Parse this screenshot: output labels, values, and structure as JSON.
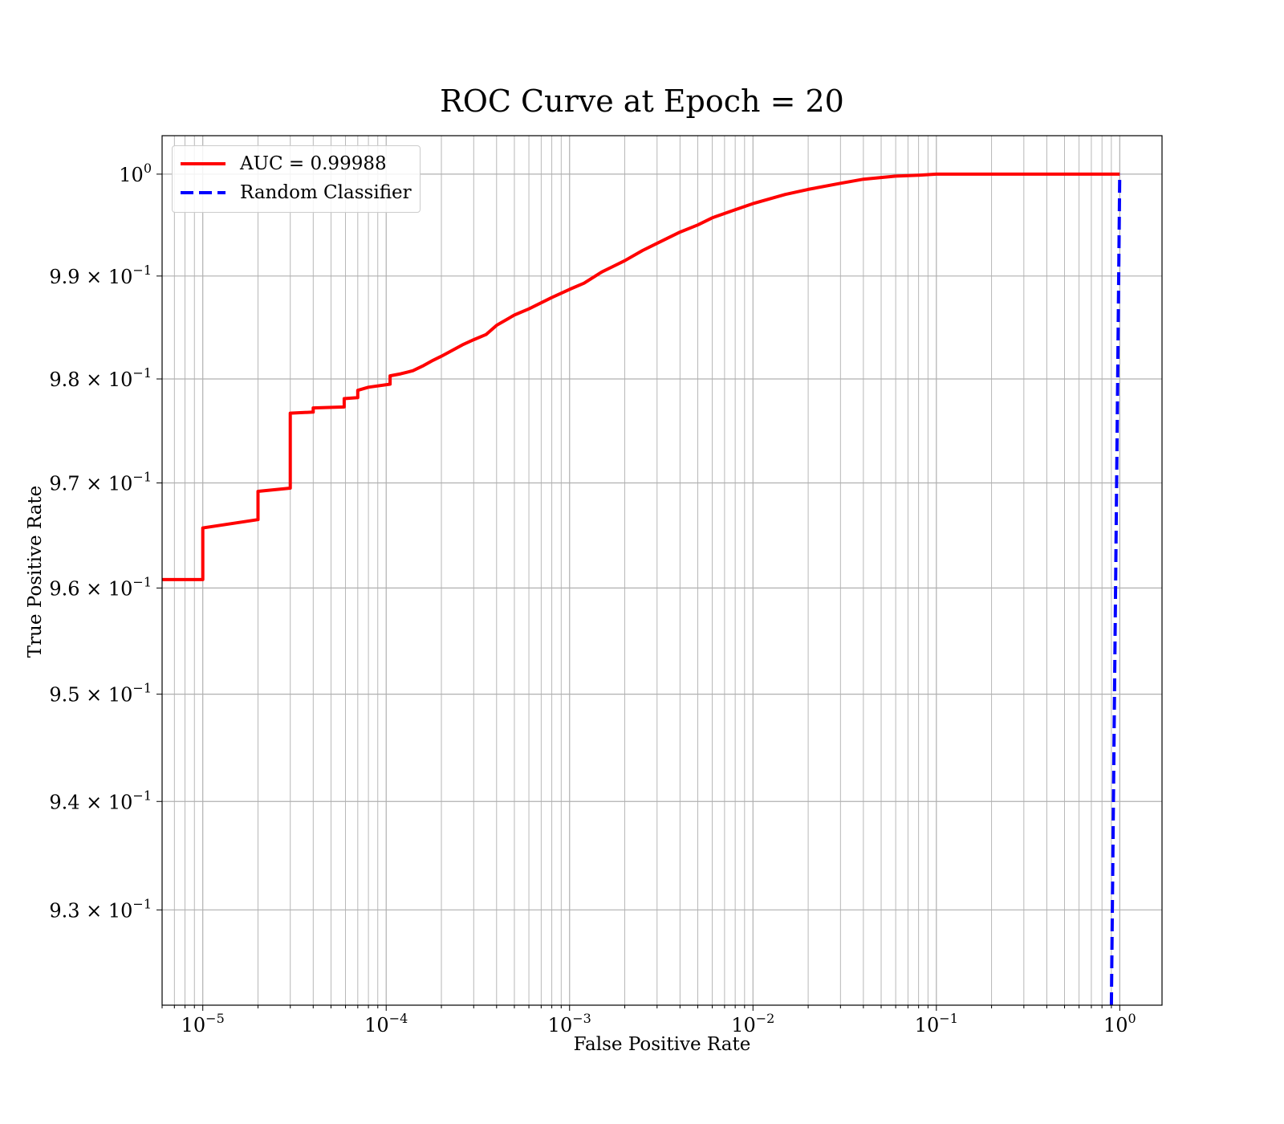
{
  "chart_data": {
    "type": "line",
    "title": "ROC Curve at Epoch = 20",
    "xlabel": "False Positive Rate",
    "ylabel": "True Positive Rate",
    "x_scale": "log",
    "y_scale": "log",
    "xlim": [
      6e-06,
      1.7
    ],
    "ylim": [
      0.9213,
      1.0038
    ],
    "grid": true,
    "grid_minor": true,
    "legend_position": "top-left",
    "x_ticks": [
      {
        "value": 1e-05,
        "base": "10",
        "exp": "−5"
      },
      {
        "value": 0.0001,
        "base": "10",
        "exp": "−4"
      },
      {
        "value": 0.001,
        "base": "10",
        "exp": "−3"
      },
      {
        "value": 0.01,
        "base": "10",
        "exp": "−2"
      },
      {
        "value": 0.1,
        "base": "10",
        "exp": "−1"
      },
      {
        "value": 1,
        "base": "10",
        "exp": "0"
      }
    ],
    "y_ticks": [
      {
        "value": 1.0,
        "mantissa": "",
        "base": "10",
        "exp": "0"
      },
      {
        "value": 0.99,
        "mantissa": "9.9 × ",
        "base": "10",
        "exp": "−1"
      },
      {
        "value": 0.98,
        "mantissa": "9.8 × ",
        "base": "10",
        "exp": "−1"
      },
      {
        "value": 0.97,
        "mantissa": "9.7 × ",
        "base": "10",
        "exp": "−1"
      },
      {
        "value": 0.96,
        "mantissa": "9.6 × ",
        "base": "10",
        "exp": "−1"
      },
      {
        "value": 0.95,
        "mantissa": "9.5 × ",
        "base": "10",
        "exp": "−1"
      },
      {
        "value": 0.94,
        "mantissa": "9.4 × ",
        "base": "10",
        "exp": "−1"
      },
      {
        "value": 0.93,
        "mantissa": "9.3 × ",
        "base": "10",
        "exp": "−1"
      }
    ],
    "series": [
      {
        "name": "AUC = 0.99988",
        "color": "#ff0000",
        "style": "solid",
        "x": [
          1e-09,
          1e-05,
          1e-05,
          2e-05,
          2e-05,
          3e-05,
          3e-05,
          4e-05,
          4e-05,
          5.9e-05,
          5.9e-05,
          7e-05,
          7e-05,
          8e-05,
          0.000105,
          0.000105,
          0.00012,
          0.00014,
          0.00016,
          0.00018,
          0.0002,
          0.00022,
          0.00026,
          0.0003,
          0.00035,
          0.0004,
          0.0005,
          0.0006,
          0.0008,
          0.001,
          0.0012,
          0.0015,
          0.002,
          0.0025,
          0.003,
          0.004,
          0.005,
          0.006,
          0.008,
          0.01,
          0.015,
          0.02,
          0.03,
          0.04,
          0.06,
          0.08,
          0.1,
          0.2,
          0.5,
          1
        ],
        "y": [
          0.9608,
          0.9608,
          0.9657,
          0.9665,
          0.9692,
          0.9695,
          0.9767,
          0.9768,
          0.9772,
          0.9773,
          0.9781,
          0.9782,
          0.9789,
          0.9792,
          0.9795,
          0.9803,
          0.9805,
          0.9808,
          0.9813,
          0.9818,
          0.9822,
          0.9826,
          0.9833,
          0.9838,
          0.9843,
          0.9852,
          0.9862,
          0.9868,
          0.9879,
          0.9887,
          0.9893,
          0.9904,
          0.9915,
          0.9925,
          0.9932,
          0.9943,
          0.995,
          0.9957,
          0.9965,
          0.9971,
          0.998,
          0.9985,
          0.9991,
          0.9995,
          0.9998,
          0.9999,
          1.0,
          1.0,
          1.0,
          1.0
        ]
      },
      {
        "name": "Random Classifier",
        "color": "#0000ff",
        "style": "dashed",
        "x": [
          0.9,
          1
        ],
        "y": [
          0.9,
          1
        ]
      }
    ]
  }
}
